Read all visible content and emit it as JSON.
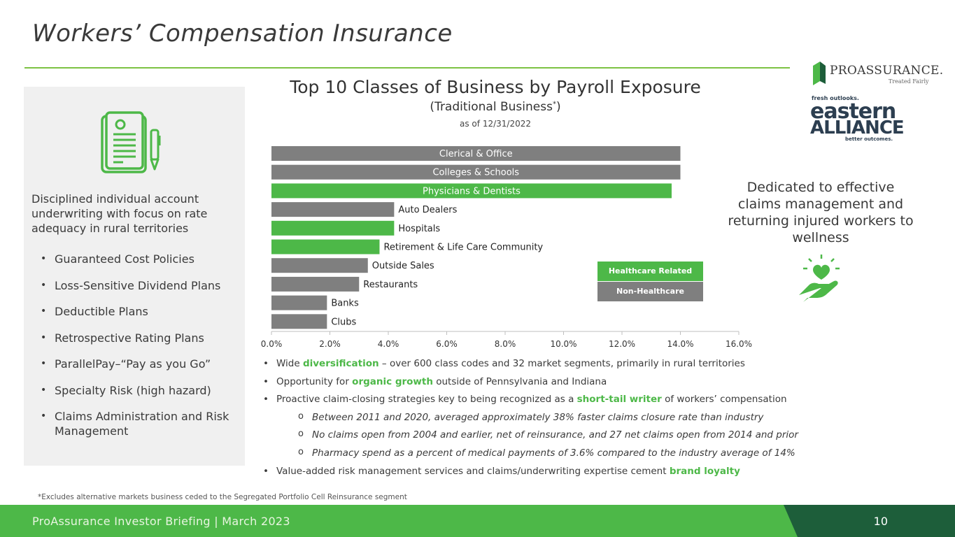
{
  "page": {
    "title": "Workers’ Compensation Insurance",
    "intro": "Disciplined individual account underwriting with focus on rate adequacy in rural territories",
    "left_bullets": [
      "Guaranteed Cost Policies",
      "Loss-Sensitive Dividend Plans",
      "Deductible Plans",
      "Retrospective Rating Plans",
      "ParallelPay–“Pay as you Go”",
      "Specialty Risk (high hazard)",
      "Claims Administration and Risk Management"
    ],
    "chart_subtitle_text": "(Traditional Business",
    "chart_subtitle_mark": "*",
    "chart_subtitle_close": ")",
    "chart_date": "as of 12/31/2022",
    "legend": [
      {
        "label": "Healthcare Related",
        "color": "#4db848"
      },
      {
        "label": "Non-Healthcare",
        "color": "#7f7f7f"
      }
    ],
    "claims_text": "Dedicated to effective claims management and returning injured workers to wellness",
    "body": {
      "b1_pre": "Wide ",
      "b1_hl": "diversification",
      "b1_post": " – over 600 class codes and 32 market segments, primarily in rural territories",
      "b2_pre": "Opportunity for ",
      "b2_hl": "organic growth",
      "b2_post": " outside of Pennsylvania and Indiana",
      "b3_pre": "Proactive claim-closing strategies key to being recognized as a ",
      "b3_hl": "short-tail writer",
      "b3_post": " of workers’ compensation",
      "sub1": "Between 2011 and 2020, averaged approximately 38% faster claims closure rate than industry",
      "sub2": "No claims open from 2004 and earlier, net of reinsurance, and 27 net claims open from 2014 and prior",
      "sub3": "Pharmacy spend as a percent of medical payments of 3.6% compared to the industry average of 14%",
      "b4_pre": "Value-added risk management services and claims/underwriting expertise cement ",
      "b4_hl": "brand loyalty"
    },
    "footnote": "*Excludes alternative markets business ceded to the Segregated Portfolio Cell Reinsurance segment",
    "footer": "ProAssurance Investor Briefing | March 2023",
    "page_number": "10",
    "logos": {
      "proassurance_name": "PROASSURANCE.",
      "proassurance_tagline": "Treated Fairly",
      "ea_top": "fresh outlooks.",
      "ea_line1": "eastern",
      "ea_line2": "ALLIANCE",
      "ea_bottom": "better outcomes."
    },
    "icons": [
      "document-pen-icon",
      "hand-heart-icon",
      "proassurance-logo",
      "eastern-alliance-logo"
    ]
  },
  "chart_data": {
    "type": "bar",
    "orientation": "horizontal",
    "title": "Top 10 Classes of Business by Payroll Exposure",
    "categories": [
      "Clerical & Office",
      "Colleges & Schools",
      "Physicians & Dentists",
      "Auto Dealers",
      "Hospitals",
      "Retirement & Life Care Community",
      "Outside Sales",
      "Restaurants",
      "Banks",
      "Clubs"
    ],
    "values": [
      14.0,
      14.0,
      13.7,
      4.2,
      4.2,
      3.7,
      3.3,
      3.0,
      1.9,
      1.9
    ],
    "groups": [
      "Non-Healthcare",
      "Non-Healthcare",
      "Healthcare Related",
      "Non-Healthcare",
      "Healthcare Related",
      "Healthcare Related",
      "Non-Healthcare",
      "Non-Healthcare",
      "Non-Healthcare",
      "Non-Healthcare"
    ],
    "colors": {
      "Healthcare Related": "#4db848",
      "Non-Healthcare": "#7f7f7f"
    },
    "xlim": [
      0,
      16
    ],
    "xticks": [
      "0.0%",
      "2.0%",
      "4.0%",
      "6.0%",
      "8.0%",
      "10.0%",
      "12.0%",
      "14.0%",
      "16.0%"
    ],
    "grid": false,
    "legend_position": "right"
  }
}
